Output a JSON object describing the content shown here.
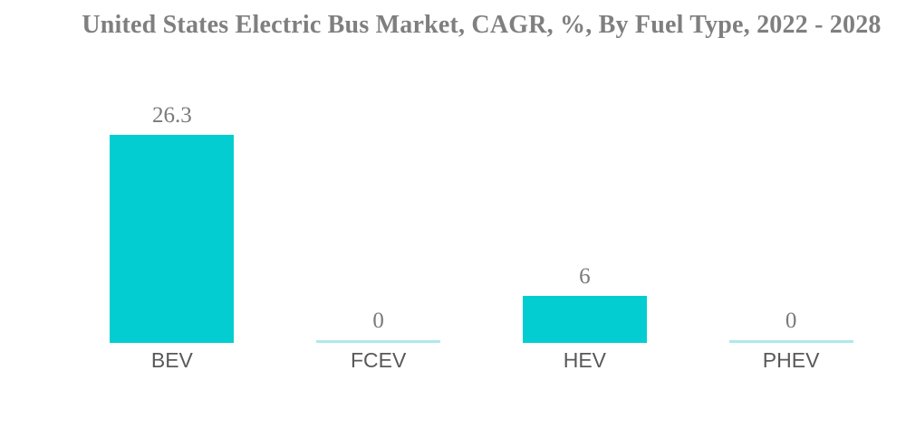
{
  "chart_data": {
    "type": "bar",
    "title": "United States Electric Bus Market, CAGR, %, By Fuel Type, 2022 - 2028",
    "categories": [
      "BEV",
      "FCEV",
      "HEV",
      "PHEV"
    ],
    "values": [
      26.3,
      0,
      6,
      0
    ],
    "value_labels": [
      "26.3",
      "0",
      "6",
      "0"
    ],
    "xlabel": "",
    "ylabel": "",
    "ylim": [
      0,
      26.3
    ],
    "grid": false,
    "legend": false,
    "layout": "single series, value labels above bars, zero values drawn as thin baseline strokes, no axes or gridlines",
    "colors": {
      "bar": "#04CDD1",
      "zero_line": "#AEE9EC",
      "title": "#7F7F7F",
      "value_label": "#7A7A7A",
      "category_label": "#595959",
      "background": "#FFFFFF"
    }
  }
}
